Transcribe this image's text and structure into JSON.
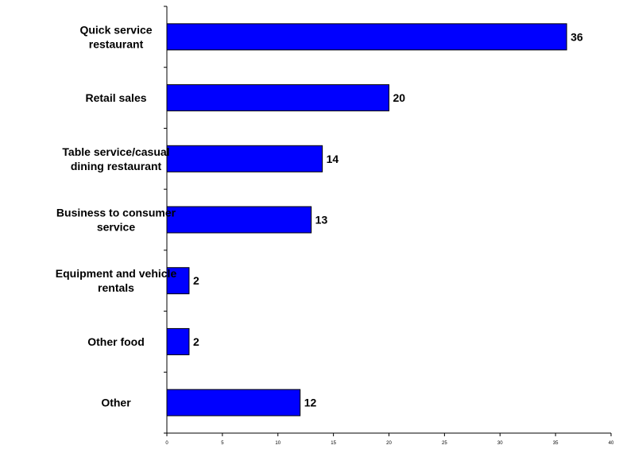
{
  "chart_data": {
    "type": "bar",
    "orientation": "horizontal",
    "categories": [
      [
        "Quick service",
        "restaurant"
      ],
      [
        "Retail sales"
      ],
      [
        "Table service/casual",
        "dining restaurant"
      ],
      [
        "Business to consumer",
        "service"
      ],
      [
        "Equipment and vehicle",
        "rentals"
      ],
      [
        "Other food"
      ],
      [
        "Other"
      ]
    ],
    "values": [
      36,
      20,
      14,
      13,
      2,
      2,
      12
    ],
    "xlim": [
      0,
      40
    ],
    "xticks": [
      0,
      5,
      10,
      15,
      20,
      25,
      30,
      35,
      40
    ],
    "grid": false,
    "legend": "none",
    "bar_color": "#0000FF",
    "bar_edge_color": "#000000"
  }
}
